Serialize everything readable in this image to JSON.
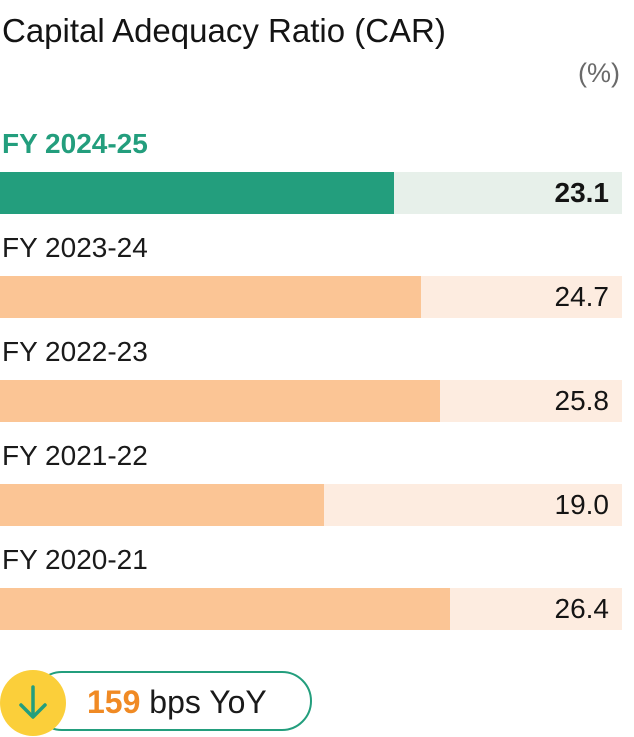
{
  "title": "Capital Adequacy Ratio (CAR)",
  "unit": "(%)",
  "colors": {
    "current_bar": "#239e7d",
    "current_track": "#e7f0ea",
    "past_bar": "#fbc595",
    "past_track": "#fdece0",
    "arrow_circle": "#fbcf3a",
    "change_number": "#f08a24"
  },
  "chart_data": {
    "type": "bar",
    "orientation": "horizontal",
    "title": "Capital Adequacy Ratio (CAR)",
    "unit": "(%)",
    "categories": [
      "FY 2024-25",
      "FY 2023-24",
      "FY 2022-23",
      "FY 2021-22",
      "FY 2020-21"
    ],
    "values": [
      23.1,
      24.7,
      25.8,
      19.0,
      26.4
    ],
    "value_labels": [
      "23.1",
      "24.7",
      "25.8",
      "19.0",
      "26.4"
    ],
    "highlighted_category": "FY 2024-25",
    "xlim": [
      0,
      36.5
    ],
    "grid": false
  },
  "yoy": {
    "icon": "arrow-down-icon",
    "value": "159",
    "unit_text": "bps YoY"
  }
}
